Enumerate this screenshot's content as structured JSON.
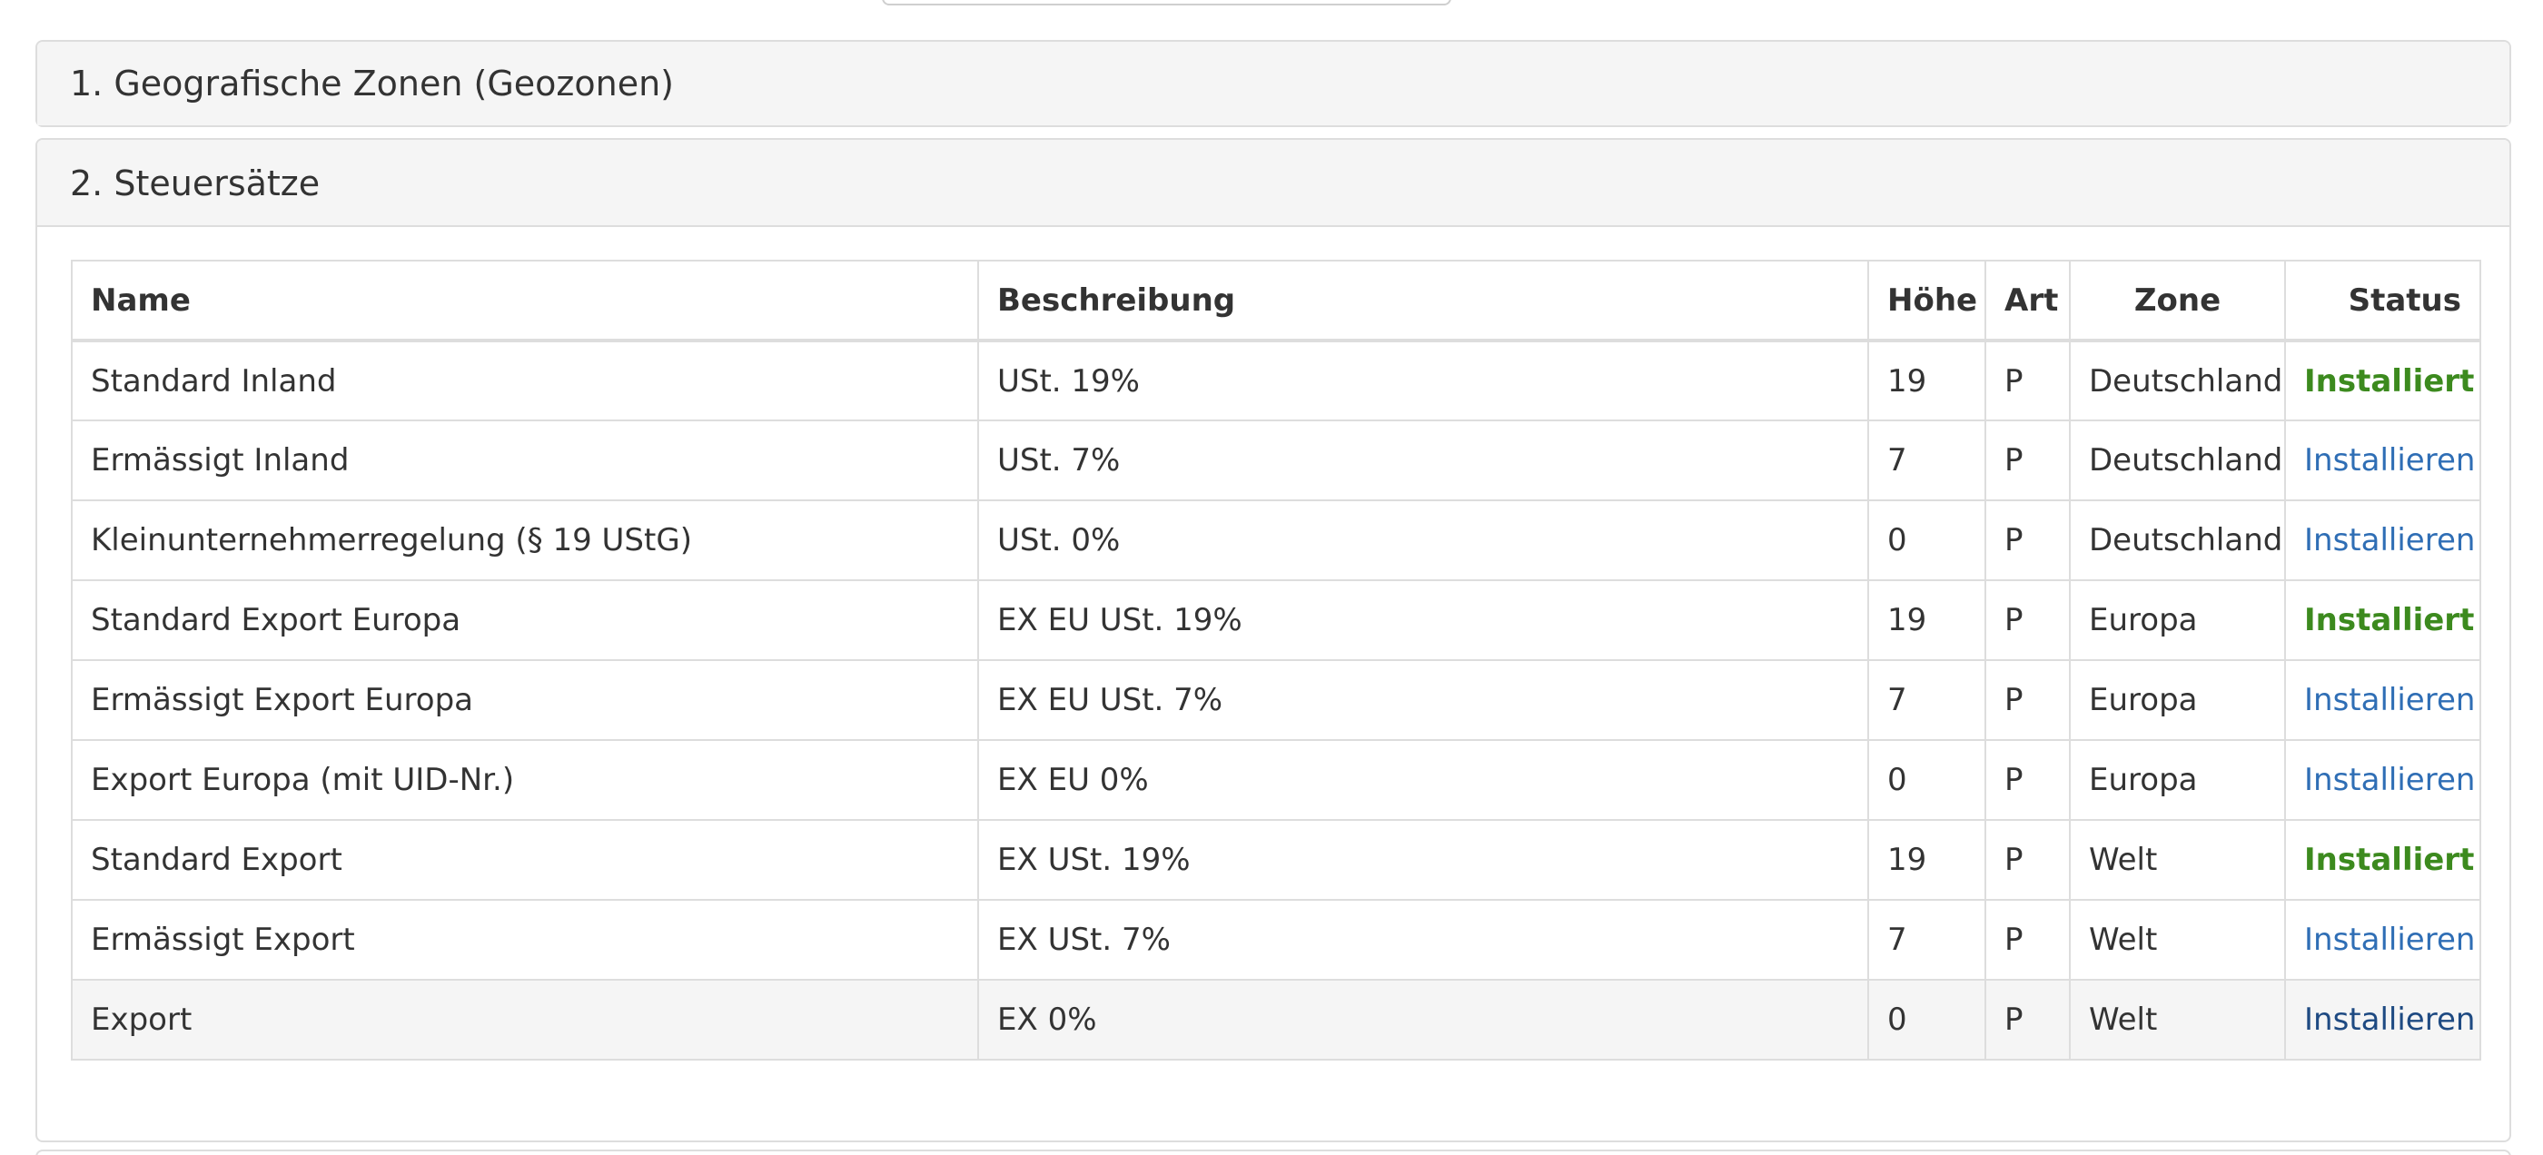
{
  "panels": {
    "geozones": {
      "title": "1. Geografische Zonen (Geozonen)"
    },
    "tax_rates": {
      "title": "2. Steuersätze"
    }
  },
  "table": {
    "headers": {
      "name": "Name",
      "description": "Beschreibung",
      "rate": "Höhe",
      "type": "Art",
      "zone": "Zone",
      "status": "Status"
    },
    "rows": [
      {
        "name": "Standard Inland",
        "description": "USt. 19%",
        "rate": "19",
        "type": "P",
        "zone": "Deutschland",
        "status": "Installiert"
      },
      {
        "name": "Ermässigt Inland",
        "description": "USt. 7%",
        "rate": "7",
        "type": "P",
        "zone": "Deutschland",
        "status": "Installieren"
      },
      {
        "name": "Kleinunternehmerregelung (§ 19 UStG)",
        "description": "USt. 0%",
        "rate": "0",
        "type": "P",
        "zone": "Deutschland",
        "status": "Installieren"
      },
      {
        "name": "Standard Export Europa",
        "description": "EX EU USt. 19%",
        "rate": "19",
        "type": "P",
        "zone": "Europa",
        "status": "Installiert"
      },
      {
        "name": "Ermässigt Export Europa",
        "description": "EX EU USt. 7%",
        "rate": "7",
        "type": "P",
        "zone": "Europa",
        "status": "Installieren"
      },
      {
        "name": "Export Europa (mit UID-Nr.)",
        "description": "EX EU 0%",
        "rate": "0",
        "type": "P",
        "zone": "Europa",
        "status": "Installieren"
      },
      {
        "name": "Standard Export",
        "description": "EX USt. 19%",
        "rate": "19",
        "type": "P",
        "zone": "Welt",
        "status": "Installiert"
      },
      {
        "name": "Ermässigt Export",
        "description": "EX USt. 7%",
        "rate": "7",
        "type": "P",
        "zone": "Welt",
        "status": "Installieren"
      },
      {
        "name": "Export",
        "description": "EX 0%",
        "rate": "0",
        "type": "P",
        "zone": "Welt",
        "status": "Installieren"
      }
    ]
  },
  "colors": {
    "installed": "#3c8a1e",
    "install_link": "#2f6eb5",
    "panel_heading_bg": "#f5f5f5",
    "border": "#dddddd"
  }
}
